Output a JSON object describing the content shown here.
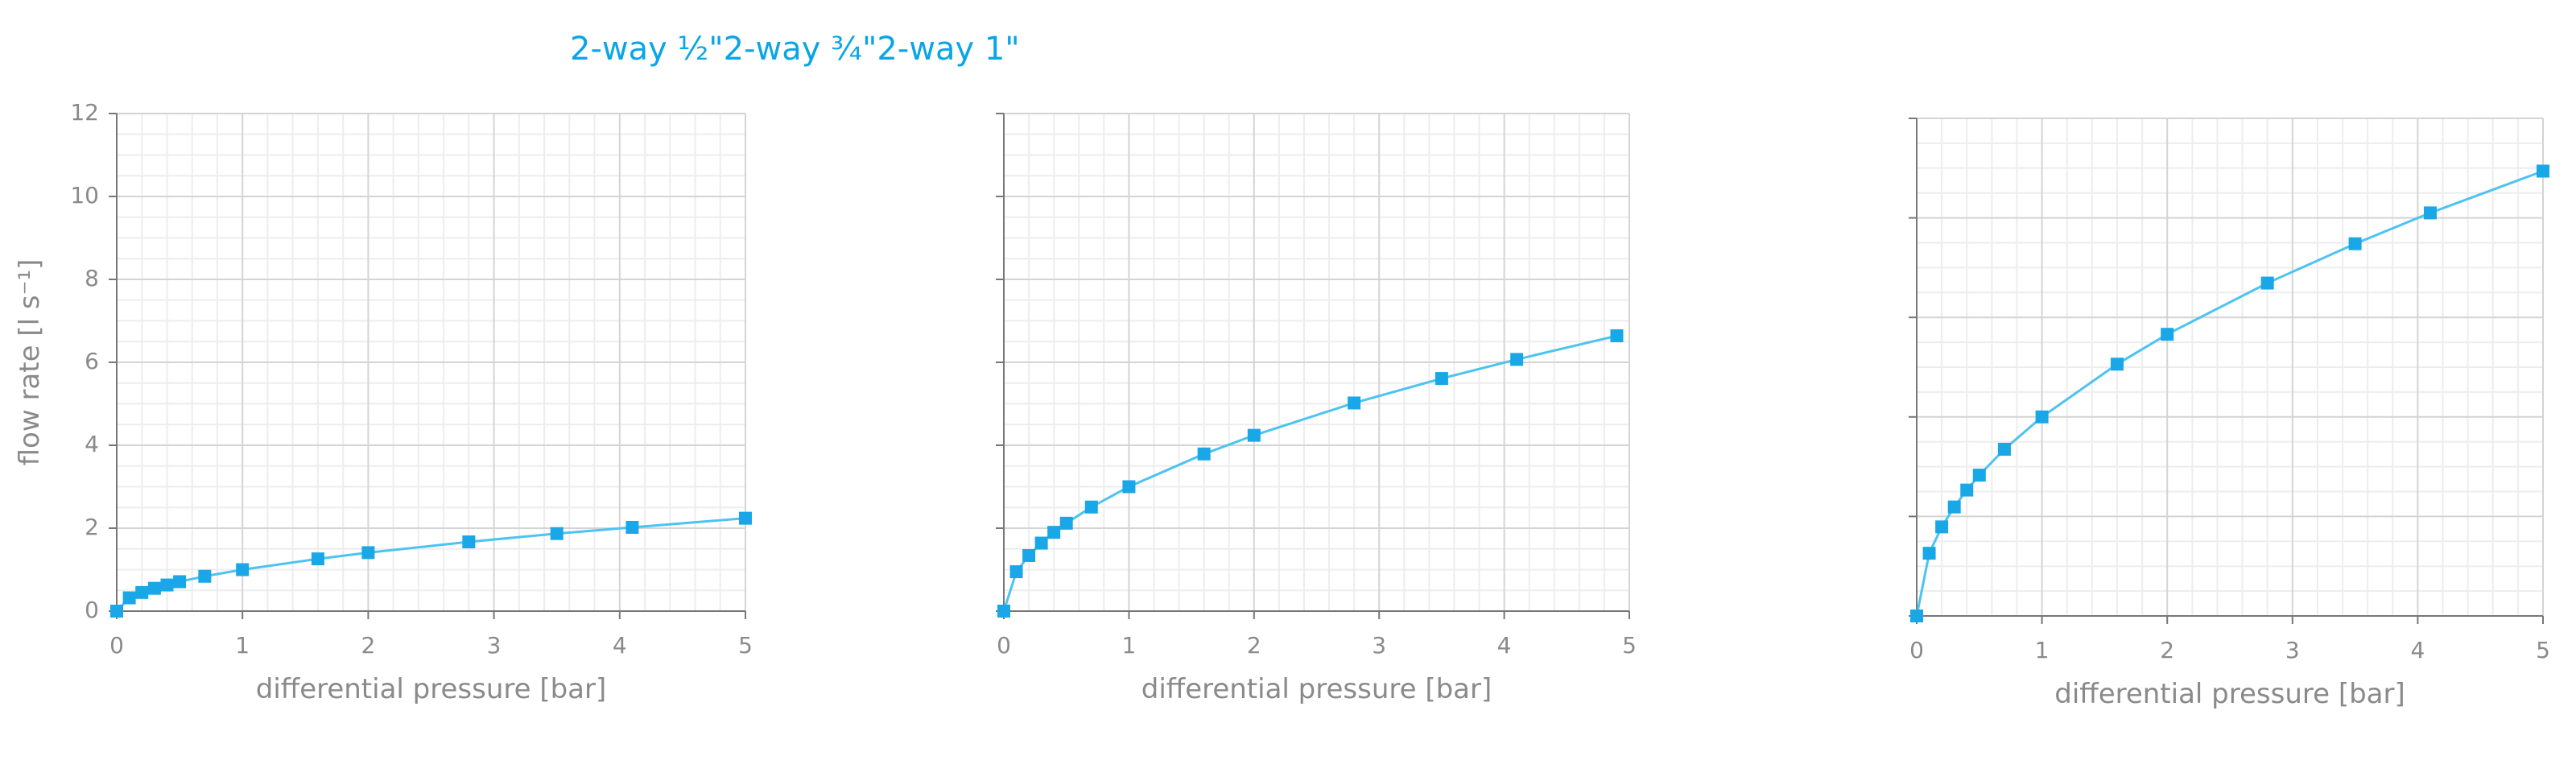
{
  "chart_data": [
    {
      "type": "line",
      "title": "2-way ½\"",
      "xlabel": "differential pressure [bar]",
      "ylabel": "flow rate [l s⁻¹]",
      "x": [
        0,
        0.1,
        0.2,
        0.3,
        0.4,
        0.5,
        0.7,
        1,
        1.6,
        2,
        2.8,
        3.5,
        4.1,
        5
      ],
      "values": [
        0,
        0.32,
        0.45,
        0.55,
        0.63,
        0.71,
        0.84,
        1,
        1.26,
        1.41,
        1.67,
        1.87,
        2.02,
        2.24
      ],
      "color": "#4cc3f0",
      "marker_color": "#1aa7e8",
      "xlim": [
        0,
        5
      ],
      "xticks": [
        0,
        1,
        2,
        3,
        4,
        5
      ],
      "ylim": [
        0,
        12
      ],
      "yticks": [
        0,
        2,
        4,
        6,
        8,
        10,
        12
      ],
      "show_ytick_labels": true,
      "grid": true
    },
    {
      "type": "line",
      "title": "2-way ¾\"",
      "xlabel": "differential pressure [bar]",
      "x": [
        0,
        0.1,
        0.2,
        0.3,
        0.4,
        0.5,
        0.7,
        1,
        1.6,
        2,
        2.8,
        3.5,
        4.1,
        4.9
      ],
      "values": [
        0,
        0.95,
        1.34,
        1.64,
        1.9,
        2.12,
        2.51,
        3,
        3.79,
        4.24,
        5.02,
        5.61,
        6.07,
        6.64
      ],
      "color": "#4cc3f0",
      "marker_color": "#1aa7e8",
      "xlim": [
        0,
        5
      ],
      "xticks": [
        0,
        1,
        2,
        3,
        4,
        5
      ],
      "ylim": [
        0,
        12
      ],
      "yticks": [
        0,
        2,
        4,
        6,
        8,
        10,
        12
      ],
      "show_ytick_labels": false,
      "grid": true
    },
    {
      "type": "line",
      "title": "2-way 1\"",
      "xlabel": "differential pressure [bar]",
      "x": [
        0,
        0.1,
        0.2,
        0.3,
        0.4,
        0.5,
        0.7,
        1,
        1.6,
        2,
        2.8,
        3.5,
        4.1,
        5
      ],
      "values": [
        0,
        1.26,
        1.79,
        2.19,
        2.53,
        2.83,
        3.35,
        4,
        5.06,
        5.66,
        6.69,
        7.48,
        8.1,
        8.94
      ],
      "color": "#4cc3f0",
      "marker_color": "#1aa7e8",
      "xlim": [
        0,
        5
      ],
      "xticks": [
        0,
        1,
        2,
        3,
        4,
        5
      ],
      "ylim": [
        0,
        10
      ],
      "yticks": [
        0,
        2,
        4,
        6,
        8,
        10
      ],
      "show_ytick_labels": false,
      "grid": true
    }
  ]
}
